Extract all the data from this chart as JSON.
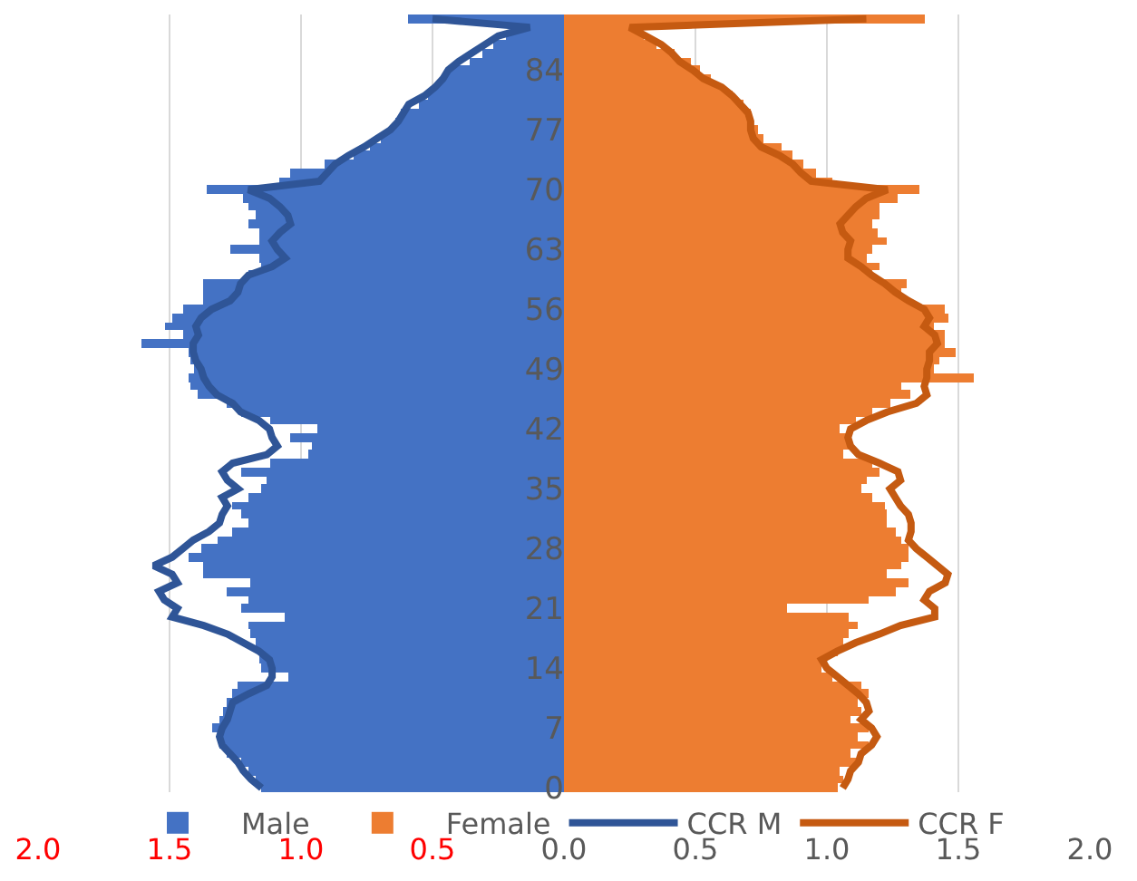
{
  "chart_data": {
    "type": "bar",
    "orientation": "horizontal",
    "categories": [
      null,
      null,
      null,
      null,
      null,
      null,
      "84",
      null,
      null,
      null,
      null,
      null,
      null,
      "77",
      null,
      null,
      null,
      null,
      null,
      null,
      "70",
      null,
      null,
      null,
      null,
      null,
      null,
      "63",
      null,
      null,
      null,
      null,
      null,
      null,
      "56",
      null,
      null,
      null,
      null,
      null,
      null,
      "49",
      null,
      null,
      null,
      null,
      null,
      null,
      "42",
      null,
      null,
      null,
      null,
      null,
      null,
      "35",
      null,
      null,
      null,
      null,
      null,
      null,
      "28",
      null,
      null,
      null,
      null,
      null,
      null,
      "21",
      null,
      null,
      null,
      null,
      null,
      null,
      "14",
      null,
      null,
      null,
      null,
      null,
      null,
      "7",
      null,
      null,
      null,
      null,
      null,
      null,
      "0"
    ],
    "series": [
      {
        "name": "Male",
        "color": "#4472c4",
        "values": [
          -0.59,
          -0.15,
          -0.22,
          -0.27,
          -0.31,
          -0.36,
          -0.44,
          -0.46,
          -0.49,
          -0.52,
          -0.55,
          -0.62,
          -0.64,
          -0.66,
          -0.7,
          -0.74,
          -0.8,
          -0.91,
          -1.04,
          -1.08,
          -1.36,
          -1.22,
          -1.2,
          -1.17,
          -1.2,
          -1.16,
          -1.16,
          -1.27,
          -1.16,
          -1.15,
          -1.2,
          -1.37,
          -1.37,
          -1.37,
          -1.45,
          -1.49,
          -1.52,
          -1.45,
          -1.61,
          -1.43,
          -1.42,
          -1.41,
          -1.43,
          -1.42,
          -1.39,
          -1.28,
          -1.23,
          -1.12,
          -0.94,
          -1.04,
          -0.96,
          -0.97,
          -1.12,
          -1.23,
          -1.13,
          -1.15,
          -1.2,
          -1.26,
          -1.23,
          -1.2,
          -1.26,
          -1.32,
          -1.38,
          -1.43,
          -1.37,
          -1.37,
          -1.19,
          -1.28,
          -1.2,
          -1.23,
          -1.06,
          -1.2,
          -1.19,
          -1.17,
          -1.16,
          -1.16,
          -1.15,
          -1.05,
          -1.24,
          -1.26,
          -1.28,
          -1.3,
          -1.31,
          -1.34,
          -1.32,
          -1.31,
          -1.28,
          -1.23,
          -1.2,
          -1.17,
          -1.15
        ]
      },
      {
        "name": "Female",
        "color": "#ed7d31",
        "values": [
          1.37,
          0.27,
          0.3,
          0.35,
          0.42,
          0.48,
          0.52,
          0.56,
          0.6,
          0.64,
          0.68,
          0.71,
          0.72,
          0.74,
          0.76,
          0.83,
          0.87,
          0.91,
          0.96,
          1.02,
          1.35,
          1.27,
          1.2,
          1.2,
          1.17,
          1.19,
          1.23,
          1.17,
          1.15,
          1.2,
          1.17,
          1.3,
          1.28,
          1.31,
          1.45,
          1.46,
          1.41,
          1.45,
          1.45,
          1.49,
          1.43,
          1.41,
          1.56,
          1.28,
          1.32,
          1.24,
          1.17,
          1.11,
          1.05,
          1.08,
          1.09,
          1.06,
          1.17,
          1.2,
          1.15,
          1.13,
          1.17,
          1.22,
          1.23,
          1.23,
          1.26,
          1.28,
          1.31,
          1.31,
          1.28,
          1.23,
          1.31,
          1.26,
          1.16,
          0.85,
          1.08,
          1.12,
          1.08,
          1.06,
          1.04,
          1.0,
          0.98,
          1.02,
          1.13,
          1.16,
          1.12,
          1.13,
          1.09,
          1.16,
          1.12,
          1.16,
          1.09,
          1.11,
          1.05,
          1.06,
          1.04
        ]
      },
      {
        "name": "CCR M",
        "type": "line",
        "color": "#2f5597",
        "values": [
          -0.5,
          -0.13,
          -0.25,
          -0.3,
          -0.35,
          -0.4,
          -0.44,
          -0.46,
          -0.49,
          -0.53,
          -0.59,
          -0.61,
          -0.63,
          -0.66,
          -0.71,
          -0.76,
          -0.82,
          -0.87,
          -0.9,
          -0.93,
          -1.2,
          -1.12,
          -1.08,
          -1.05,
          -1.04,
          -1.08,
          -1.11,
          -1.09,
          -1.06,
          -1.11,
          -1.2,
          -1.23,
          -1.24,
          -1.27,
          -1.34,
          -1.38,
          -1.4,
          -1.39,
          -1.41,
          -1.41,
          -1.4,
          -1.38,
          -1.37,
          -1.35,
          -1.32,
          -1.26,
          -1.23,
          -1.16,
          -1.12,
          -1.11,
          -1.09,
          -1.13,
          -1.26,
          -1.3,
          -1.28,
          -1.24,
          -1.3,
          -1.28,
          -1.3,
          -1.31,
          -1.35,
          -1.41,
          -1.45,
          -1.49,
          -1.56,
          -1.49,
          -1.47,
          -1.54,
          -1.52,
          -1.47,
          -1.49,
          -1.37,
          -1.28,
          -1.22,
          -1.16,
          -1.12,
          -1.11,
          -1.11,
          -1.13,
          -1.2,
          -1.26,
          -1.27,
          -1.28,
          -1.3,
          -1.31,
          -1.3,
          -1.27,
          -1.24,
          -1.22,
          -1.19,
          -1.15
        ]
      },
      {
        "name": "CCR F",
        "type": "line",
        "color": "#c55a11",
        "values": [
          1.15,
          0.25,
          0.31,
          0.37,
          0.41,
          0.44,
          0.49,
          0.53,
          0.6,
          0.64,
          0.67,
          0.7,
          0.71,
          0.71,
          0.72,
          0.75,
          0.82,
          0.87,
          0.9,
          0.94,
          1.23,
          1.15,
          1.11,
          1.08,
          1.05,
          1.06,
          1.09,
          1.08,
          1.08,
          1.13,
          1.17,
          1.22,
          1.26,
          1.31,
          1.37,
          1.39,
          1.37,
          1.41,
          1.42,
          1.39,
          1.39,
          1.38,
          1.38,
          1.37,
          1.38,
          1.34,
          1.23,
          1.15,
          1.09,
          1.08,
          1.09,
          1.12,
          1.2,
          1.27,
          1.28,
          1.24,
          1.26,
          1.28,
          1.31,
          1.32,
          1.32,
          1.31,
          1.34,
          1.38,
          1.42,
          1.46,
          1.45,
          1.39,
          1.37,
          1.41,
          1.41,
          1.28,
          1.2,
          1.11,
          1.04,
          0.98,
          1.0,
          1.04,
          1.08,
          1.12,
          1.15,
          1.16,
          1.13,
          1.17,
          1.19,
          1.17,
          1.13,
          1.12,
          1.09,
          1.08,
          1.06
        ]
      }
    ],
    "xlim": [
      -2,
      2
    ],
    "xticks": [
      {
        "value": -2,
        "label": "2.0"
      },
      {
        "value": -1.5,
        "label": "1.5"
      },
      {
        "value": -1,
        "label": "1.0"
      },
      {
        "value": -0.5,
        "label": "0.5"
      },
      {
        "value": 0,
        "label": "0.0"
      },
      {
        "value": 0.5,
        "label": "0.5"
      },
      {
        "value": 1,
        "label": "1.0"
      },
      {
        "value": 1.5,
        "label": "1.5"
      },
      {
        "value": 2,
        "label": "2.0"
      }
    ],
    "grid": "x",
    "legend": "bottom",
    "stacked": true,
    "line_style": "solid",
    "marker": "none"
  }
}
